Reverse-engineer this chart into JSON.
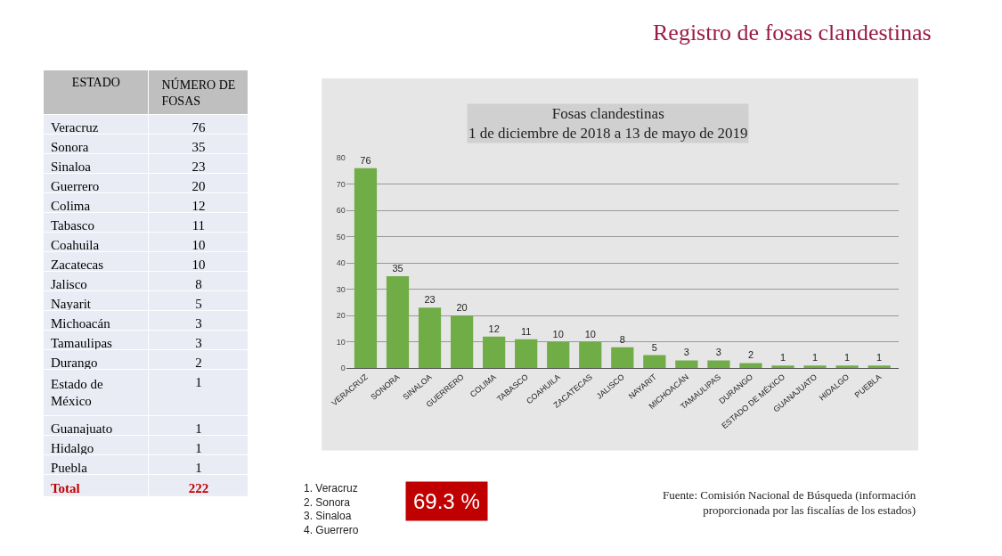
{
  "chart_data": [
    {
      "type": "other",
      "xlabel": "ESTADO",
      "ylabel": "NÚMERO DE FOSAS",
      "categories": [
        "Veracruz",
        "Sonora",
        "Sinaloa",
        "Guerrero",
        "Colima",
        "Tabasco",
        "Coahuila",
        "Zacatecas",
        "Jalisco",
        "Nayarit",
        "Michoacán",
        "Tamaulipas",
        "Durango",
        "Estado de México",
        "Guanajuato",
        "Hidalgo",
        "Puebla"
      ],
      "values": [
        76,
        35,
        23,
        20,
        12,
        11,
        10,
        10,
        8,
        5,
        3,
        3,
        2,
        1,
        1,
        1,
        1
      ],
      "data_labels": true,
      "annotations": [
        "Total",
        "222"
      ]
    },
    {
      "type": "bar",
      "title": "Fosas clandestinas",
      "subtitle": "1 de diciembre de 2018 a 13 de mayo de 2019",
      "categories": [
        "VERACRUZ",
        "SONORA",
        "SINALOA",
        "GUERRERO",
        "COLIMA",
        "TABASCO",
        "COAHUILA",
        "ZACATECAS",
        "JALISCO",
        "NAYARIT",
        "MICHOACÁN",
        "TAMAULIPAS",
        "DURANGO",
        "ESTADO DE MÉXICO",
        "GUANAJUATO",
        "HIDALGO",
        "PUEBLA"
      ],
      "values": [
        76,
        35,
        23,
        20,
        12,
        11,
        10,
        10,
        8,
        5,
        3,
        3,
        2,
        1,
        1,
        1,
        1
      ],
      "color": "#70ad47",
      "ylim": [
        0,
        80
      ],
      "yticks": [
        0,
        10,
        20,
        30,
        40,
        50,
        60,
        70,
        80
      ],
      "grid": "y",
      "data_labels": true,
      "annotations": [
        "Registro de fosas clandestinas",
        "1. Veracruz\n2. Sonora\n3. Sinaloa\n4. Guerrero",
        "69.3 %",
        "Fuente: Comisión Nacional de Búsqueda (información\nproporcionada por las fiscalías de los estados)"
      ]
    }
  ]
}
